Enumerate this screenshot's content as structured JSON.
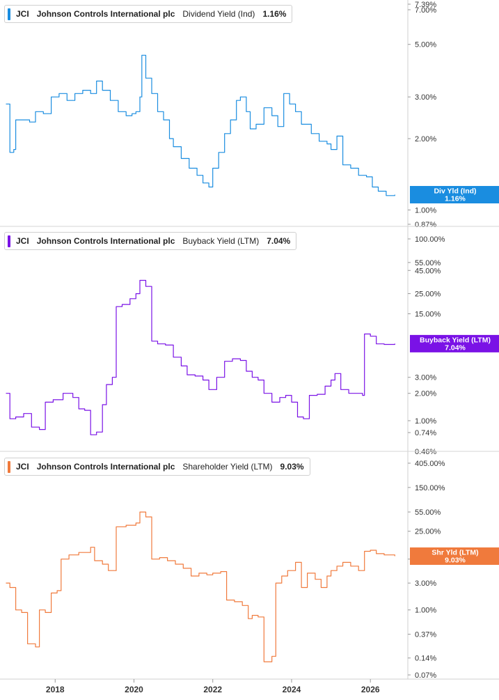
{
  "chart_data": [
    {
      "type": "line",
      "ticker": "JCI",
      "company": "Johnson Controls International plc",
      "metric": "Dividend Yield (Ind)",
      "current_value": "1.16%",
      "flag_label": "Div Yld (Ind)",
      "color": "#1a8de0",
      "scale": "log",
      "ylim": [
        0.87,
        7.39
      ],
      "yticks": [
        "7.39%",
        "7.00%",
        "5.00%",
        "3.00%",
        "2.00%",
        "1.00%",
        "0.87%"
      ],
      "series": [
        {
          "values": [
            [
              2016.75,
              2.8
            ],
            [
              2016.85,
              1.75
            ],
            [
              2016.95,
              1.8
            ],
            [
              2017.0,
              2.4
            ],
            [
              2017.2,
              2.4
            ],
            [
              2017.35,
              2.35
            ],
            [
              2017.5,
              2.6
            ],
            [
              2017.7,
              2.55
            ],
            [
              2017.9,
              3.0
            ],
            [
              2018.1,
              3.1
            ],
            [
              2018.3,
              2.9
            ],
            [
              2018.5,
              3.1
            ],
            [
              2018.7,
              3.2
            ],
            [
              2018.9,
              3.1
            ],
            [
              2019.05,
              3.5
            ],
            [
              2019.2,
              3.2
            ],
            [
              2019.4,
              2.9
            ],
            [
              2019.6,
              2.6
            ],
            [
              2019.8,
              2.5
            ],
            [
              2019.95,
              2.55
            ],
            [
              2020.05,
              2.6
            ],
            [
              2020.15,
              3.0
            ],
            [
              2020.2,
              4.5
            ],
            [
              2020.3,
              3.6
            ],
            [
              2020.45,
              3.1
            ],
            [
              2020.6,
              2.6
            ],
            [
              2020.75,
              2.4
            ],
            [
              2020.9,
              2.0
            ],
            [
              2021.0,
              1.85
            ],
            [
              2021.2,
              1.65
            ],
            [
              2021.4,
              1.5
            ],
            [
              2021.6,
              1.4
            ],
            [
              2021.75,
              1.3
            ],
            [
              2021.9,
              1.25
            ],
            [
              2022.0,
              1.5
            ],
            [
              2022.15,
              1.75
            ],
            [
              2022.3,
              2.1
            ],
            [
              2022.45,
              2.4
            ],
            [
              2022.6,
              2.9
            ],
            [
              2022.7,
              3.0
            ],
            [
              2022.85,
              2.6
            ],
            [
              2022.95,
              2.2
            ],
            [
              2023.1,
              2.3
            ],
            [
              2023.3,
              2.7
            ],
            [
              2023.5,
              2.5
            ],
            [
              2023.65,
              2.25
            ],
            [
              2023.8,
              3.1
            ],
            [
              2023.95,
              2.8
            ],
            [
              2024.1,
              2.6
            ],
            [
              2024.25,
              2.3
            ],
            [
              2024.5,
              2.1
            ],
            [
              2024.7,
              1.95
            ],
            [
              2024.9,
              1.9
            ],
            [
              2025.0,
              1.8
            ],
            [
              2025.15,
              2.05
            ],
            [
              2025.3,
              1.55
            ],
            [
              2025.5,
              1.5
            ],
            [
              2025.7,
              1.4
            ],
            [
              2025.9,
              1.38
            ],
            [
              2026.05,
              1.25
            ],
            [
              2026.2,
              1.2
            ],
            [
              2026.4,
              1.15
            ],
            [
              2026.62,
              1.16
            ]
          ]
        }
      ]
    },
    {
      "type": "line",
      "ticker": "JCI",
      "company": "Johnson Controls International plc",
      "metric": "Buyback Yield (LTM)",
      "current_value": "7.04%",
      "flag_label": "Buyback Yield (LTM)",
      "color": "#7a12e6",
      "scale": "log",
      "ylim": [
        0.46,
        100
      ],
      "yticks": [
        "100.00%",
        "55.00%",
        "45.00%",
        "25.00%",
        "15.00%",
        "3.00%",
        "2.00%",
        "1.00%",
        "0.74%",
        "0.46%"
      ],
      "series": [
        {
          "values": [
            [
              2016.75,
              2.0
            ],
            [
              2016.85,
              1.05
            ],
            [
              2017.0,
              1.1
            ],
            [
              2017.2,
              1.2
            ],
            [
              2017.4,
              0.85
            ],
            [
              2017.6,
              0.8
            ],
            [
              2017.75,
              1.6
            ],
            [
              2017.95,
              1.7
            ],
            [
              2018.2,
              2.0
            ],
            [
              2018.45,
              1.8
            ],
            [
              2018.6,
              1.35
            ],
            [
              2018.75,
              1.3
            ],
            [
              2018.9,
              0.7
            ],
            [
              2019.05,
              0.75
            ],
            [
              2019.2,
              1.5
            ],
            [
              2019.3,
              2.5
            ],
            [
              2019.45,
              3.0
            ],
            [
              2019.55,
              18.0
            ],
            [
              2019.7,
              19.0
            ],
            [
              2019.9,
              22.0
            ],
            [
              2020.05,
              25.0
            ],
            [
              2020.15,
              35.0
            ],
            [
              2020.3,
              30.0
            ],
            [
              2020.45,
              7.5
            ],
            [
              2020.6,
              7.0
            ],
            [
              2020.8,
              6.8
            ],
            [
              2021.0,
              5.0
            ],
            [
              2021.2,
              4.0
            ],
            [
              2021.35,
              3.2
            ],
            [
              2021.55,
              3.1
            ],
            [
              2021.75,
              2.8
            ],
            [
              2021.9,
              2.2
            ],
            [
              2022.1,
              3.0
            ],
            [
              2022.3,
              4.5
            ],
            [
              2022.5,
              4.8
            ],
            [
              2022.7,
              4.6
            ],
            [
              2022.85,
              3.5
            ],
            [
              2023.0,
              3.0
            ],
            [
              2023.15,
              2.8
            ],
            [
              2023.3,
              2.0
            ],
            [
              2023.5,
              1.6
            ],
            [
              2023.7,
              1.8
            ],
            [
              2023.85,
              1.9
            ],
            [
              2024.0,
              1.6
            ],
            [
              2024.15,
              1.1
            ],
            [
              2024.3,
              1.05
            ],
            [
              2024.45,
              1.9
            ],
            [
              2024.65,
              1.95
            ],
            [
              2024.85,
              2.4
            ],
            [
              2025.0,
              2.8
            ],
            [
              2025.1,
              3.3
            ],
            [
              2025.25,
              2.2
            ],
            [
              2025.45,
              2.0
            ],
            [
              2025.8,
              1.9
            ],
            [
              2025.85,
              9.0
            ],
            [
              2026.0,
              8.5
            ],
            [
              2026.15,
              7.0
            ],
            [
              2026.35,
              6.9
            ],
            [
              2026.62,
              7.04
            ]
          ]
        }
      ]
    },
    {
      "type": "line",
      "ticker": "JCI",
      "company": "Johnson Controls International plc",
      "metric": "Shareholder Yield (LTM)",
      "current_value": "9.03%",
      "flag_label": "Shr Yld (LTM)",
      "color": "#f07a3c",
      "scale": "log",
      "ylim": [
        0.07,
        405
      ],
      "yticks": [
        "405.00%",
        "150.00%",
        "55.00%",
        "25.00%",
        "8.00%",
        "3.00%",
        "1.00%",
        "0.37%",
        "0.14%",
        "0.07%"
      ],
      "series": [
        {
          "values": [
            [
              2016.75,
              3.0
            ],
            [
              2016.85,
              2.5
            ],
            [
              2017.0,
              1.0
            ],
            [
              2017.15,
              0.9
            ],
            [
              2017.3,
              0.25
            ],
            [
              2017.5,
              0.22
            ],
            [
              2017.6,
              1.0
            ],
            [
              2017.75,
              0.9
            ],
            [
              2017.9,
              2.0
            ],
            [
              2018.05,
              2.2
            ],
            [
              2018.15,
              8.0
            ],
            [
              2018.35,
              9.5
            ],
            [
              2018.6,
              10.5
            ],
            [
              2018.9,
              13.0
            ],
            [
              2019.0,
              7.5
            ],
            [
              2019.2,
              6.5
            ],
            [
              2019.35,
              5.0
            ],
            [
              2019.55,
              30.0
            ],
            [
              2019.8,
              32.0
            ],
            [
              2020.05,
              35.0
            ],
            [
              2020.15,
              55.0
            ],
            [
              2020.3,
              45.0
            ],
            [
              2020.45,
              8.0
            ],
            [
              2020.65,
              8.5
            ],
            [
              2020.85,
              7.5
            ],
            [
              2021.05,
              6.5
            ],
            [
              2021.25,
              5.5
            ],
            [
              2021.45,
              4.0
            ],
            [
              2021.65,
              4.5
            ],
            [
              2021.85,
              4.2
            ],
            [
              2022.0,
              4.5
            ],
            [
              2022.2,
              4.8
            ],
            [
              2022.35,
              1.5
            ],
            [
              2022.55,
              1.4
            ],
            [
              2022.75,
              1.2
            ],
            [
              2022.9,
              0.7
            ],
            [
              2023.0,
              0.8
            ],
            [
              2023.15,
              0.75
            ],
            [
              2023.3,
              0.12
            ],
            [
              2023.5,
              0.15
            ],
            [
              2023.6,
              3.0
            ],
            [
              2023.75,
              4.0
            ],
            [
              2023.9,
              5.0
            ],
            [
              2024.1,
              7.0
            ],
            [
              2024.25,
              2.5
            ],
            [
              2024.4,
              4.5
            ],
            [
              2024.6,
              3.5
            ],
            [
              2024.75,
              2.5
            ],
            [
              2024.9,
              4.0
            ],
            [
              2025.0,
              5.0
            ],
            [
              2025.15,
              6.0
            ],
            [
              2025.3,
              7.0
            ],
            [
              2025.5,
              6.0
            ],
            [
              2025.7,
              5.0
            ],
            [
              2025.85,
              11.0
            ],
            [
              2026.0,
              11.5
            ],
            [
              2026.15,
              10.0
            ],
            [
              2026.35,
              9.5
            ],
            [
              2026.62,
              9.03
            ]
          ]
        }
      ]
    }
  ],
  "x_axis": {
    "range": [
      2016.6,
      2026.95
    ],
    "ticks": [
      "2018",
      "2020",
      "2022",
      "2024",
      "2026"
    ],
    "tick_values": [
      2018,
      2020,
      2022,
      2024,
      2026
    ]
  }
}
